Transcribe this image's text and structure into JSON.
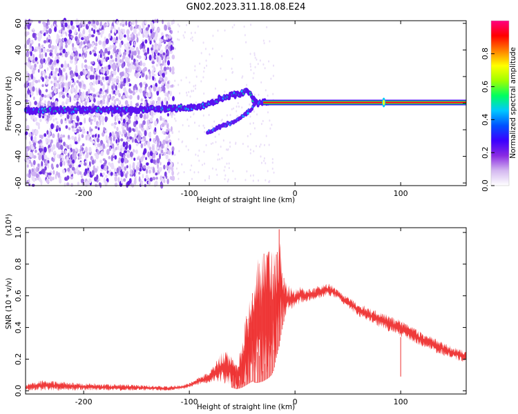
{
  "title": "GN02.2023.311.18.08.E24",
  "chart_data": [
    {
      "type": "heatmap",
      "name": "spectrogram",
      "xlabel": "Height of straight line (km)",
      "ylabel": "Frequency (Hz)",
      "xlim": [
        -255,
        162
      ],
      "ylim": [
        -62,
        62
      ],
      "xticks": [
        -200,
        -100,
        0,
        100
      ],
      "yticks": [
        -60,
        -40,
        -20,
        0,
        20,
        40,
        60
      ],
      "colorbar": {
        "label": "Normalized spectral amplitude",
        "range": [
          0,
          1
        ],
        "ticks": [
          "0.0",
          "0.2",
          "0.4",
          "0.6",
          "0.8"
        ],
        "colors": [
          "#ffffff",
          "#d4b8f0",
          "#8a2be2",
          "#3b00ff",
          "#0050ff",
          "#00c8ff",
          "#00ff60",
          "#a0ff00",
          "#ffff00",
          "#ff8000",
          "#ff0000",
          "#ff0080"
        ]
      },
      "features": [
        {
          "label": "main trace",
          "x": [
            -255,
            -200,
            -150,
            -110,
            -100,
            -90,
            -80,
            -70,
            -60,
            -50,
            -45,
            -40,
            -35,
            -30,
            -20,
            0,
            162
          ],
          "y": [
            -6,
            -5,
            -5,
            -4,
            -3,
            -3,
            0,
            4,
            6,
            8,
            10,
            3,
            0,
            1,
            1,
            1,
            1
          ]
        },
        {
          "label": "secondary trace",
          "x": [
            -83,
            -75,
            -65,
            -55,
            -48,
            -42,
            -38
          ],
          "y": [
            -22,
            -19,
            -16,
            -13,
            -9,
            -5,
            -1
          ]
        },
        {
          "label": "steady line",
          "x": [
            -30,
            162
          ],
          "y": [
            0.5,
            0.5
          ]
        }
      ]
    },
    {
      "type": "line",
      "name": "snr",
      "xlabel": "Height of straight line (km)",
      "ylabel": "SNR (10 * v/v)",
      "yscale_note": "(x10⁴)",
      "xlim": [
        -255,
        162
      ],
      "ylim": [
        -0.02,
        1.03
      ],
      "xticks": [
        -200,
        -100,
        0,
        100
      ],
      "yticks": [
        0.0,
        0.2,
        0.4,
        0.6,
        0.8,
        1.0
      ],
      "color": "#ee3030",
      "envelope": {
        "x": [
          -255,
          -240,
          -200,
          -150,
          -120,
          -105,
          -100,
          -95,
          -90,
          -85,
          -80,
          -75,
          -70,
          -65,
          -60,
          -55,
          -50,
          -45,
          -40,
          -38,
          -35,
          -30,
          -25,
          -22,
          -20,
          -18,
          -15,
          -12,
          -10,
          -5,
          0,
          5,
          10,
          20,
          30,
          35,
          40,
          50,
          60,
          80,
          100,
          120,
          140,
          162
        ],
        "lower": [
          0.0,
          0.0,
          0.0,
          0.0,
          0.0,
          0.01,
          0.02,
          0.03,
          0.04,
          0.04,
          0.05,
          0.06,
          0.05,
          0.03,
          0.02,
          0.01,
          0.02,
          0.04,
          0.06,
          0.05,
          0.05,
          0.06,
          0.08,
          0.1,
          0.13,
          0.2,
          0.28,
          0.4,
          0.45,
          0.5,
          0.52,
          0.55,
          0.56,
          0.57,
          0.6,
          0.59,
          0.58,
          0.52,
          0.47,
          0.4,
          0.34,
          0.28,
          0.22,
          0.17
        ],
        "upper": [
          0.04,
          0.07,
          0.05,
          0.04,
          0.03,
          0.04,
          0.05,
          0.07,
          0.09,
          0.11,
          0.13,
          0.18,
          0.24,
          0.27,
          0.23,
          0.17,
          0.3,
          0.55,
          0.65,
          0.7,
          0.85,
          0.88,
          0.92,
          0.9,
          0.92,
          0.85,
          1.02,
          0.8,
          0.7,
          0.66,
          0.64,
          0.66,
          0.64,
          0.66,
          0.68,
          0.67,
          0.64,
          0.6,
          0.55,
          0.5,
          0.45,
          0.37,
          0.31,
          0.25
        ]
      },
      "spikes": [
        {
          "x": 100,
          "y": 0.09
        },
        {
          "x": -15,
          "y": 1.02
        }
      ]
    }
  ]
}
